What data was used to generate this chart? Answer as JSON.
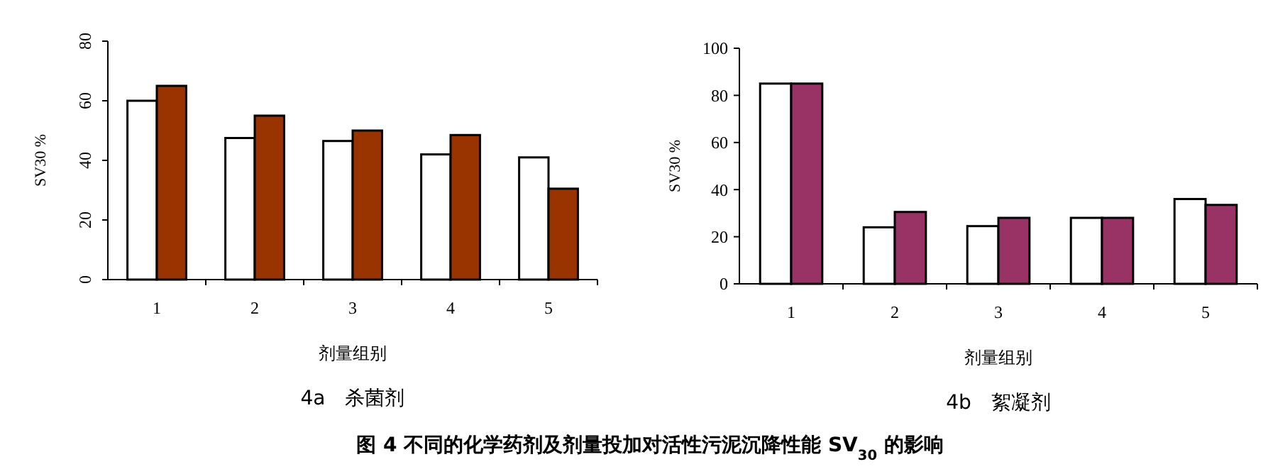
{
  "chart_data": [
    {
      "type": "bar",
      "title": "4a　杀菌剂",
      "xlabel": "剂量组别",
      "ylabel": "SV30 %",
      "categories": [
        "1",
        "2",
        "3",
        "4",
        "5"
      ],
      "series": [
        {
          "color": "#ffffff",
          "values": [
            60,
            47.5,
            46.5,
            42,
            41
          ]
        },
        {
          "color": "#993300",
          "values": [
            65,
            55,
            50,
            48.5,
            30.5
          ]
        }
      ],
      "ylim": [
        0,
        80
      ],
      "yticks": [
        0,
        20,
        40,
        60,
        80
      ],
      "grid": false,
      "annotations": [
        "图 4 不同的化学药剂及剂量投加对活性污泥沉降性能 SV$_{30}$ 的影响"
      ]
    },
    {
      "type": "bar",
      "title": "4b　絮凝剂",
      "xlabel": "剂量组别",
      "ylabel": "SV30 %",
      "categories": [
        "1",
        "2",
        "3",
        "4",
        "5"
      ],
      "series": [
        {
          "color": "#ffffff",
          "values": [
            85,
            24,
            24.5,
            28,
            36
          ]
        },
        {
          "color": "#993366",
          "values": [
            85,
            30.5,
            28,
            28,
            33.5
          ]
        }
      ],
      "ylim": [
        0,
        100
      ],
      "yticks": [
        0,
        20,
        40,
        60,
        80,
        100
      ],
      "grid": false
    }
  ]
}
